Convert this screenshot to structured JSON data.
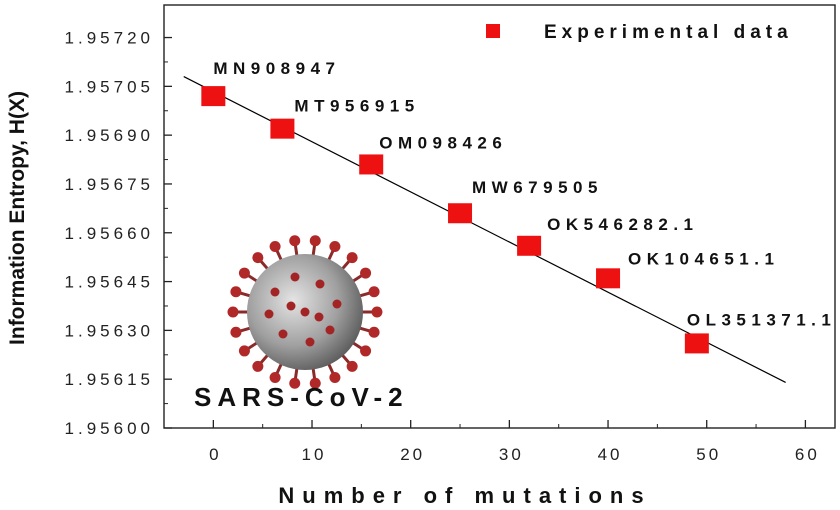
{
  "chart_data": {
    "type": "scatter",
    "xlabel": "Number of mutations",
    "ylabel": "Information Entropy, H(X)",
    "xlim": [
      -5,
      63
    ],
    "ylim": [
      1.956,
      1.9573
    ],
    "x_ticks": [
      0,
      10,
      20,
      30,
      40,
      50,
      60
    ],
    "y_ticks": [
      "1.95600",
      "1.95615",
      "1.95630",
      "1.95645",
      "1.95660",
      "1.95675",
      "1.95690",
      "1.95705",
      "1.95720"
    ],
    "legend": {
      "label": "Experimental data",
      "position": "top-right",
      "color": "#ee1111"
    },
    "series": [
      {
        "name": "Experimental data",
        "points": [
          {
            "label": "MN908947",
            "x": 0,
            "y": 1.95702
          },
          {
            "label": "MT956915",
            "x": 7,
            "y": 1.95692
          },
          {
            "label": "OM098426",
            "x": 16,
            "y": 1.95681
          },
          {
            "label": "MW679505",
            "x": 25,
            "y": 1.95666
          },
          {
            "label": "OK546282.1",
            "x": 32,
            "y": 1.95656
          },
          {
            "label": "OK104651.1",
            "x": 40,
            "y": 1.95646
          },
          {
            "label": "OL351371.1",
            "x": 49,
            "y": 1.95626
          }
        ]
      }
    ],
    "fit_line": {
      "x": [
        -3,
        58
      ],
      "y": [
        1.95708,
        1.95614
      ],
      "color": "#000000"
    }
  },
  "inset": {
    "label": "SARS-CoV-2",
    "image": "coronavirus-image"
  }
}
